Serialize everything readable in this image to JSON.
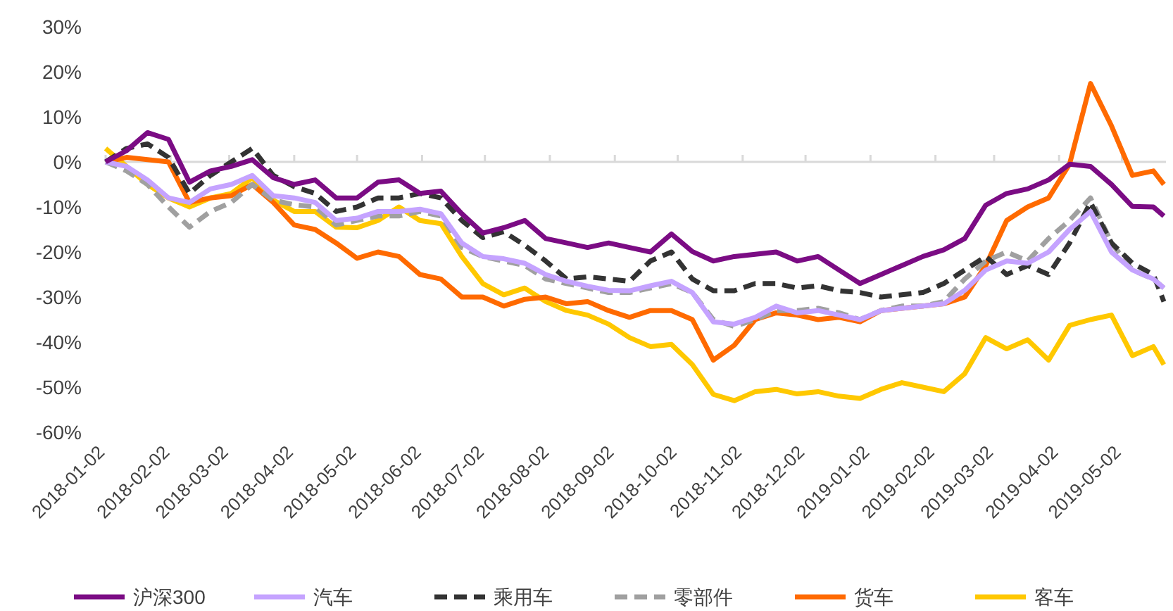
{
  "chart_data": {
    "type": "line",
    "legend": "bottom",
    "grid": false,
    "marker": "none",
    "ref_lines": [
      {
        "axis": "y",
        "value": 0,
        "label": null,
        "color": "#d9d9d9"
      }
    ],
    "x": [
      "2018-01-02",
      "2018-01-12",
      "2018-01-22",
      "2018-02-01",
      "2018-02-11",
      "2018-02-21",
      "2018-03-03",
      "2018-03-13",
      "2018-03-23",
      "2018-04-02",
      "2018-04-12",
      "2018-04-22",
      "2018-05-02",
      "2018-05-12",
      "2018-05-22",
      "2018-06-01",
      "2018-06-11",
      "2018-06-21",
      "2018-07-01",
      "2018-07-11",
      "2018-07-21",
      "2018-07-31",
      "2018-08-10",
      "2018-08-20",
      "2018-08-30",
      "2018-09-09",
      "2018-09-19",
      "2018-09-29",
      "2018-10-09",
      "2018-10-19",
      "2018-10-29",
      "2018-11-08",
      "2018-11-18",
      "2018-11-28",
      "2018-12-08",
      "2018-12-18",
      "2018-12-28",
      "2019-01-07",
      "2019-01-17",
      "2019-01-27",
      "2019-02-06",
      "2019-02-16",
      "2019-02-26",
      "2019-03-08",
      "2019-03-18",
      "2019-03-28",
      "2019-04-07",
      "2019-04-17",
      "2019-04-27",
      "2019-05-07",
      "2019-05-17",
      "2019-05-22"
    ],
    "xlim": [
      "2018-01-02",
      "2019-05-23"
    ],
    "xticks": [
      "2018-01-02",
      "2018-02-02",
      "2018-03-02",
      "2018-04-02",
      "2018-05-02",
      "2018-06-02",
      "2018-07-02",
      "2018-08-02",
      "2018-09-02",
      "2018-10-02",
      "2018-11-02",
      "2018-12-02",
      "2019-01-02",
      "2019-02-02",
      "2019-03-02",
      "2019-04-02",
      "2019-05-02"
    ],
    "ylim": [
      -60,
      30
    ],
    "yticks": [
      {
        "value": 30,
        "label": "30%"
      },
      {
        "value": 20,
        "label": "20%"
      },
      {
        "value": 10,
        "label": "10%"
      },
      {
        "value": 0,
        "label": "0%"
      },
      {
        "value": -10,
        "label": "-10%"
      },
      {
        "value": -20,
        "label": "-20%"
      },
      {
        "value": -30,
        "label": "-30%"
      },
      {
        "value": -40,
        "label": "-40%"
      },
      {
        "value": -50,
        "label": "-50%"
      },
      {
        "value": -60,
        "label": "-60%"
      }
    ],
    "series": [
      {
        "name": "沪深300",
        "color": "#7b0c84",
        "line_style": "solid",
        "values": [
          0,
          2.5,
          6.5,
          5,
          -4.5,
          -2,
          -1,
          0.5,
          -3.5,
          -5,
          -4,
          -8,
          -8,
          -4.5,
          -4,
          -7,
          -6.5,
          -11.5,
          -15.8,
          -14.6,
          -13,
          -17,
          -18,
          -19,
          -18,
          -19,
          -20,
          -16,
          -19.9,
          -22,
          -21,
          -20.5,
          -20,
          -22,
          -21,
          -24,
          -27,
          -25,
          -23,
          -21,
          -19.5,
          -17,
          -9.6,
          -7,
          -6,
          -4,
          -0.5,
          -1,
          -5,
          -9.9,
          -10,
          -12
        ]
      },
      {
        "name": "汽车",
        "color": "#c5a3ff",
        "line_style": "solid",
        "values": [
          0,
          -1,
          -4,
          -8,
          -9,
          -6,
          -5,
          -3,
          -7.5,
          -8,
          -9,
          -13,
          -12.5,
          -11,
          -11,
          -10.5,
          -11.5,
          -18,
          -21,
          -21.5,
          -22.5,
          -25,
          -26.5,
          -27.6,
          -28.5,
          -28.6,
          -27.5,
          -26.5,
          -29,
          -35.5,
          -36,
          -34.5,
          -32,
          -33.5,
          -33,
          -34,
          -35,
          -33,
          -32.5,
          -32,
          -31.5,
          -28.5,
          -24,
          -22,
          -22.5,
          -20,
          -15,
          -11,
          -20,
          -24,
          -26,
          -28
        ]
      },
      {
        "name": "乘用车",
        "color": "#333333",
        "line_style": "dashed",
        "values": [
          0,
          3,
          4,
          1,
          -7,
          -3,
          0,
          3,
          -3,
          -5.5,
          -7,
          -11,
          -10,
          -8,
          -8,
          -7,
          -8,
          -13,
          -16.8,
          -15.5,
          -18.5,
          -22,
          -26,
          -25.5,
          -26,
          -26.5,
          -22,
          -20,
          -26,
          -28.6,
          -28.6,
          -27,
          -27,
          -28,
          -27.5,
          -28.6,
          -29,
          -30,
          -29.5,
          -29,
          -27,
          -24,
          -21,
          -25,
          -23,
          -25,
          -18,
          -9,
          -18,
          -22.5,
          -25,
          -31
        ]
      },
      {
        "name": "零部件",
        "color": "#a0a0a0",
        "line_style": "dashed",
        "values": [
          0,
          -2,
          -5,
          -10,
          -14.5,
          -11,
          -9,
          -5,
          -8.5,
          -9.5,
          -10,
          -14,
          -13,
          -12,
          -12,
          -11,
          -12,
          -19,
          -21,
          -22,
          -23,
          -26,
          -27,
          -28,
          -29,
          -29,
          -28,
          -27,
          -29,
          -35,
          -36.5,
          -35,
          -33,
          -33,
          -32.5,
          -33.5,
          -35,
          -33,
          -32,
          -32,
          -31,
          -26,
          -22,
          -20,
          -22,
          -17,
          -13,
          -8,
          -18,
          -24,
          -26,
          -28
        ]
      },
      {
        "name": "货车",
        "color": "#ff6a00",
        "line_style": "solid",
        "values": [
          0,
          1,
          0.5,
          0,
          -9,
          -8,
          -7.5,
          -5,
          -9,
          -14,
          -15,
          -18,
          -21.4,
          -20,
          -21,
          -25,
          -26,
          -30,
          -30,
          -32,
          -30.5,
          -30,
          -31.5,
          -31,
          -33,
          -34.5,
          -33,
          -33,
          -35,
          -44,
          -40.7,
          -35,
          -33.5,
          -34,
          -35,
          -34.5,
          -35.5,
          -33,
          -32.5,
          -32,
          -31.5,
          -30,
          -23,
          -13,
          -10,
          -8,
          -0.5,
          17.4,
          8,
          -3,
          -2,
          -5
        ]
      },
      {
        "name": "客车",
        "color": "#ffc800",
        "line_style": "solid",
        "values": [
          3,
          -1,
          -5,
          -8,
          -10,
          -8,
          -7,
          -3.5,
          -8.5,
          -11,
          -11,
          -14.5,
          -14.6,
          -13,
          -10,
          -13,
          -13.7,
          -21,
          -27,
          -29.5,
          -28,
          -31,
          -33,
          -34,
          -36,
          -39,
          -41,
          -40.5,
          -45,
          -51.6,
          -53,
          -51,
          -50.5,
          -51.5,
          -51,
          -52,
          -52.5,
          -50.5,
          -49,
          -50,
          -51,
          -47,
          -39,
          -41.5,
          -39.5,
          -44,
          -36.3,
          -35,
          -34,
          -43,
          -41,
          -45
        ]
      }
    ]
  }
}
